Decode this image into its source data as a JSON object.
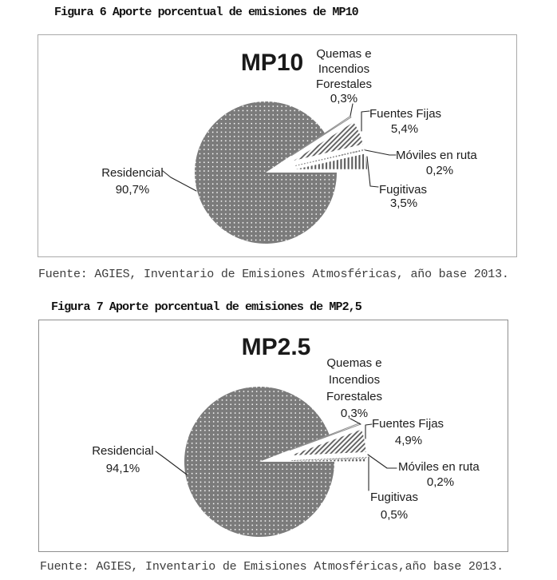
{
  "chart_data": [
    {
      "type": "pie",
      "figure_caption": "Figura 6 Aporte porcentual de emisiones de MP10",
      "chart_title": "MP10",
      "source_note": "Fuente: AGIES, Inventario de Emisiones Atmosféricas, año base 2013.",
      "legend": "none",
      "labels_style": "callouts-with-leader-lines",
      "slices": [
        {
          "label": "Residencial",
          "label_lines": [
            "Residencial"
          ],
          "value": 90.7,
          "value_label": "90,7%",
          "pattern": "dots-white-on-gray",
          "exploded": false
        },
        {
          "label": "Quemas e Incendios Forestales",
          "label_lines": [
            "Quemas e",
            "Incendios",
            "Forestales"
          ],
          "value": 0.3,
          "value_label": "0,3%",
          "pattern": "solid-white",
          "exploded": true
        },
        {
          "label": "Fuentes Fijas",
          "label_lines": [
            "Fuentes Fijas"
          ],
          "value": 5.4,
          "value_label": "5,4%",
          "pattern": "diagonal-hatch",
          "exploded": true
        },
        {
          "label": "Móviles en ruta",
          "label_lines": [
            "Móviles en ruta"
          ],
          "value": 0.2,
          "value_label": "0,2%",
          "pattern": "small-dots",
          "exploded": true
        },
        {
          "label": "Fugitivas",
          "label_lines": [
            "Fugitivas"
          ],
          "value": 3.5,
          "value_label": "3,5%",
          "pattern": "vertical-hatch",
          "exploded": true
        }
      ]
    },
    {
      "type": "pie",
      "figure_caption": "Figura 7 Aporte porcentual de emisiones de MP2,5",
      "chart_title": "MP2.5",
      "source_note": "Fuente: AGIES, Inventario de Emisiones Atmosféricas,año base 2013.",
      "legend": "none",
      "labels_style": "callouts-with-leader-lines",
      "slices": [
        {
          "label": "Residencial",
          "label_lines": [
            "Residencial"
          ],
          "value": 94.1,
          "value_label": "94,1%",
          "pattern": "dots-white-on-gray",
          "exploded": false
        },
        {
          "label": "Quemas e Incendios Forestales",
          "label_lines": [
            "Quemas e",
            "Incendios",
            "Forestales"
          ],
          "value": 0.3,
          "value_label": "0,3%",
          "pattern": "solid-white",
          "exploded": true
        },
        {
          "label": "Fuentes Fijas",
          "label_lines": [
            "Fuentes Fijas"
          ],
          "value": 4.9,
          "value_label": "4,9%",
          "pattern": "diagonal-hatch",
          "exploded": true
        },
        {
          "label": "Móviles en ruta",
          "label_lines": [
            "Móviles en ruta"
          ],
          "value": 0.2,
          "value_label": "0,2%",
          "pattern": "small-dots",
          "exploded": true
        },
        {
          "label": "Fugitivas",
          "label_lines": [
            "Fugitivas"
          ],
          "value": 0.5,
          "value_label": "0,5%",
          "pattern": "vertical-hatch",
          "exploded": true
        }
      ]
    }
  ],
  "colors": {
    "pie_fill_gray": "#7b7b7b",
    "pattern_dot_white": "#ffffff",
    "hatch_gray": "#595959",
    "small_dot_gray": "#6f6f6f",
    "leader_line": "#262626",
    "label_text": "#1c1c1c",
    "caption_text": "#111111",
    "source_text": "#3d3d3d",
    "frame_border_top": "#aaaaaa",
    "frame_border_bottom": "#8f8f8f"
  }
}
